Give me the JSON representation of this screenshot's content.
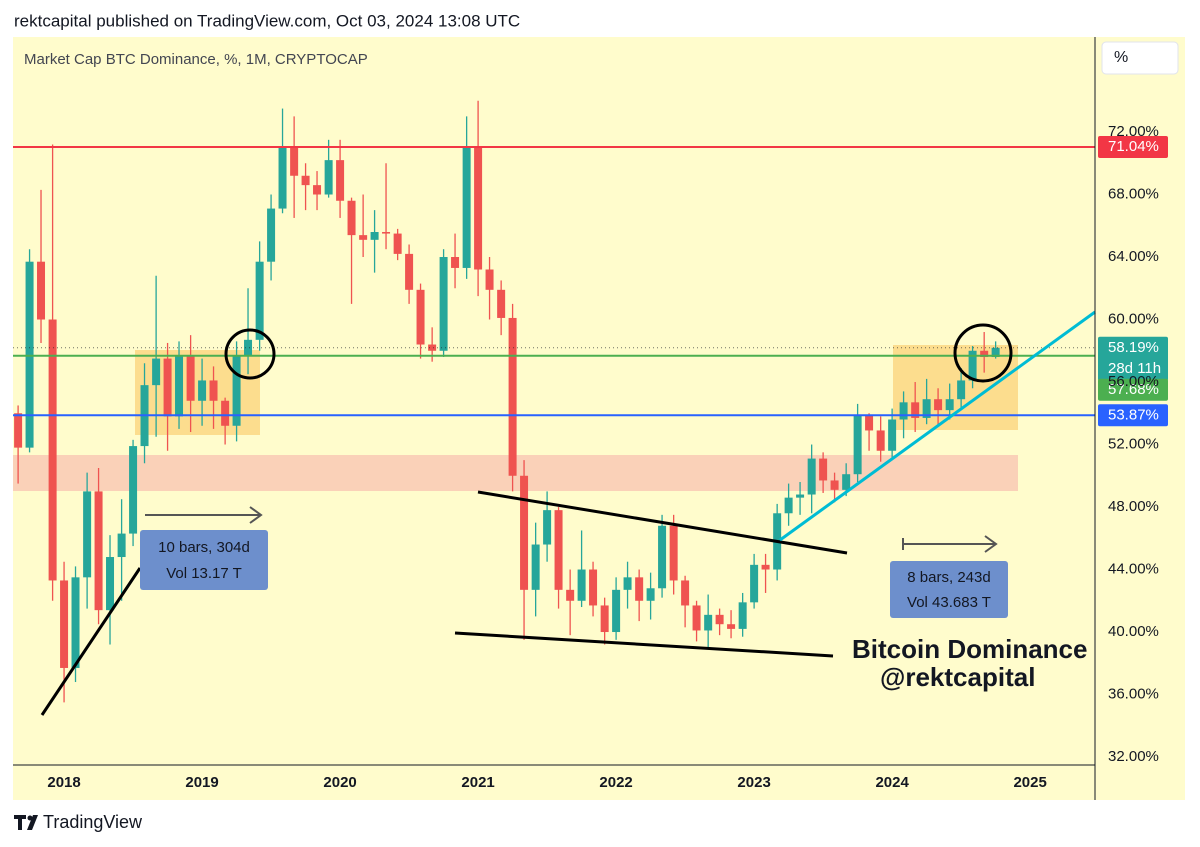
{
  "header": "rektcapital published on TradingView.com, Oct 03, 2024 13:08 UTC",
  "footer_logo": "TradingView",
  "scale_button": "%",
  "chart_data": {
    "type": "candlestick",
    "title": "Market Cap BTC Dominance, %, 1M, CRYPTOCAP",
    "x": [
      2017.667,
      2017.75,
      2017.833,
      2017.917,
      2018,
      2018.083,
      2018.167,
      2018.25,
      2018.333,
      2018.417,
      2018.5,
      2018.583,
      2018.667,
      2018.75,
      2018.833,
      2018.917,
      2019,
      2019.083,
      2019.167,
      2019.25,
      2019.333,
      2019.417,
      2019.5,
      2019.583,
      2019.667,
      2019.75,
      2019.833,
      2019.917,
      2020,
      2020.083,
      2020.167,
      2020.25,
      2020.333,
      2020.417,
      2020.5,
      2020.583,
      2020.667,
      2020.75,
      2020.833,
      2020.917,
      2021,
      2021.083,
      2021.167,
      2021.25,
      2021.333,
      2021.417,
      2021.5,
      2021.583,
      2021.667,
      2021.75,
      2021.833,
      2021.917,
      2022,
      2022.083,
      2022.167,
      2022.25,
      2022.333,
      2022.417,
      2022.5,
      2022.583,
      2022.667,
      2022.75,
      2022.833,
      2022.917,
      2023,
      2023.083,
      2023.167,
      2023.25,
      2023.333,
      2023.417,
      2023.5,
      2023.583,
      2023.667,
      2023.75,
      2023.833,
      2023.917,
      2024,
      2024.083,
      2024.167,
      2024.25,
      2024.333,
      2024.417,
      2024.5,
      2024.583,
      2024.667,
      2024.75
    ],
    "open": [
      54.0,
      51.8,
      63.7,
      60.0,
      43.3,
      37.7,
      43.5,
      49.0,
      41.4,
      44.8,
      46.3,
      51.9,
      55.8,
      57.5,
      53.8,
      57.7,
      54.8,
      56.1,
      54.8,
      53.2,
      57.7,
      58.7,
      63.7,
      67.1,
      71.0,
      69.2,
      68.6,
      68.0,
      70.2,
      67.6,
      65.4,
      65.1,
      65.6,
      65.5,
      64.2,
      61.9,
      58.4,
      58.0,
      64.0,
      63.3,
      71.0,
      63.2,
      61.9,
      60.1,
      50.0,
      42.7,
      45.6,
      47.8,
      42.7,
      42.0,
      44.0,
      41.7,
      40.0,
      42.7,
      43.5,
      42.0,
      42.8,
      46.8,
      43.3,
      41.7,
      40.1,
      41.1,
      40.5,
      40.2,
      41.9,
      44.3,
      44.0,
      47.6,
      48.6,
      48.8,
      51.1,
      49.7,
      49.1,
      50.1,
      53.9,
      52.9,
      51.6,
      53.6,
      54.7,
      53.7,
      54.9,
      54.2,
      54.9,
      56.1,
      58.0,
      57.6
    ],
    "high": [
      54.5,
      64.5,
      68.3,
      71.2,
      44.5,
      44.2,
      50.2,
      50.5,
      46.2,
      48.5,
      52.3,
      57.2,
      62.8,
      58.5,
      58.6,
      59.0,
      57.5,
      57.0,
      55.0,
      58.6,
      62.0,
      65.0,
      68.0,
      73.5,
      73.0,
      70.0,
      69.5,
      71.5,
      71.5,
      67.8,
      68.0,
      67.0,
      70.0,
      65.8,
      64.8,
      62.3,
      59.5,
      64.5,
      65.5,
      73.0,
      74.0,
      64.0,
      62.5,
      61.0,
      51.0,
      47.0,
      49.0,
      48.0,
      44.0,
      46.5,
      44.5,
      42.2,
      43.5,
      44.5,
      44.0,
      43.8,
      47.5,
      47.5,
      43.6,
      42.0,
      42.4,
      41.5,
      41.4,
      42.5,
      45.0,
      45.0,
      48.2,
      49.5,
      49.6,
      52.0,
      51.5,
      50.2,
      50.8,
      54.6,
      54.0,
      53.8,
      54.3,
      55.4,
      56.0,
      56.2,
      55.6,
      55.9,
      56.9,
      58.3,
      59.2,
      58.6
    ],
    "low": [
      49.5,
      51.5,
      58.5,
      42.0,
      35.5,
      36.8,
      41.5,
      40.5,
      39.2,
      42.0,
      45.5,
      50.8,
      52.5,
      51.6,
      53.0,
      52.8,
      53.2,
      53.0,
      52.0,
      52.2,
      56.5,
      58.0,
      62.5,
      66.8,
      66.5,
      67.0,
      67.0,
      67.8,
      66.5,
      61.0,
      64.0,
      63.0,
      64.5,
      63.8,
      61.0,
      57.5,
      57.3,
      57.6,
      62.0,
      62.6,
      61.5,
      60.0,
      59.0,
      49.0,
      39.5,
      41.0,
      44.5,
      41.5,
      39.8,
      41.6,
      41.0,
      39.2,
      39.5,
      41.5,
      40.7,
      40.8,
      42.2,
      42.4,
      40.3,
      39.4,
      38.9,
      39.8,
      39.6,
      39.7,
      41.5,
      42.5,
      43.3,
      46.8,
      47.5,
      47.6,
      48.9,
      48.3,
      48.7,
      49.6,
      51.6,
      50.9,
      51.0,
      52.4,
      52.8,
      53.3,
      53.2,
      53.6,
      54.2,
      55.6,
      56.6,
      57.5
    ],
    "close": [
      51.8,
      63.7,
      60.0,
      43.3,
      37.7,
      43.5,
      49.0,
      41.4,
      44.8,
      46.3,
      51.9,
      55.8,
      57.5,
      53.8,
      57.7,
      54.8,
      56.1,
      54.8,
      53.2,
      57.7,
      58.7,
      63.7,
      67.1,
      71.0,
      69.2,
      68.6,
      68.0,
      70.2,
      67.6,
      65.4,
      65.1,
      65.6,
      65.5,
      64.2,
      61.9,
      58.4,
      58.0,
      64.0,
      63.3,
      71.0,
      63.2,
      61.9,
      60.1,
      50.0,
      42.7,
      45.6,
      47.8,
      42.7,
      42.0,
      44.0,
      41.7,
      40.0,
      42.7,
      43.5,
      42.0,
      42.8,
      46.8,
      43.3,
      41.7,
      40.1,
      41.1,
      40.5,
      40.2,
      41.9,
      44.3,
      44.0,
      47.6,
      48.6,
      48.8,
      51.1,
      49.7,
      49.1,
      50.1,
      53.9,
      52.9,
      51.6,
      53.6,
      54.7,
      53.7,
      54.9,
      54.2,
      54.9,
      56.1,
      58.0,
      57.6,
      58.19
    ],
    "up_color": "#26a69a",
    "down_color": "#ef5350",
    "xlim": [
      2017.63,
      2025.47
    ],
    "xticks": [
      2018,
      2019,
      2020,
      2021,
      2022,
      2023,
      2024,
      2025
    ],
    "ylim": [
      31.49,
      78.08
    ],
    "yticks": [
      {
        "value": 32,
        "label": "32.00%"
      },
      {
        "value": 36,
        "label": "36.00%"
      },
      {
        "value": 40,
        "label": "40.00%"
      },
      {
        "value": 44,
        "label": "44.00%"
      },
      {
        "value": 48,
        "label": "48.00%"
      },
      {
        "value": 52,
        "label": "52.00%"
      },
      {
        "value": 56,
        "label": "56.00%"
      },
      {
        "value": 60,
        "label": "60.00%"
      },
      {
        "value": 64,
        "label": "64.00%"
      },
      {
        "value": 68,
        "label": "68.00%"
      },
      {
        "value": 72,
        "label": "72.00%"
      }
    ],
    "levels": [
      {
        "value": 71.04,
        "label": "71.04%",
        "color": "#f23645"
      },
      {
        "value": 57.68,
        "label": "57.68%",
        "color": "#4caf50"
      },
      {
        "value": 53.87,
        "label": "53.87%",
        "color": "#2962ff"
      }
    ],
    "last_price_label": "58.19%",
    "countdown": "28d 11h",
    "annotations": [
      "Bitcoin Dominance",
      "@rektcapital"
    ],
    "measurements": [
      [
        "10 bars, 304d",
        "Vol 13.17 T"
      ],
      [
        "8 bars, 243d",
        "Vol 43.683 T"
      ]
    ]
  }
}
